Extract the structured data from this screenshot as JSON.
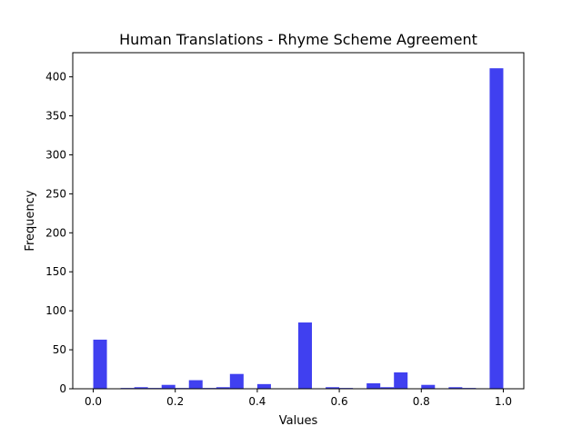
{
  "chart_data": {
    "type": "bar",
    "title": "Human Translations - Rhyme Scheme Agreement",
    "xlabel": "Values",
    "ylabel": "Frequency",
    "xlim": [
      -0.05,
      1.05
    ],
    "ylim": [
      0,
      431
    ],
    "x_ticks": [
      0.0,
      0.2,
      0.4,
      0.6,
      0.8,
      1.0
    ],
    "x_tick_labels": [
      "0.0",
      "0.2",
      "0.4",
      "0.6",
      "0.8",
      "1.0"
    ],
    "y_ticks": [
      0,
      50,
      100,
      150,
      200,
      250,
      300,
      350,
      400
    ],
    "y_tick_labels": [
      "0",
      "50",
      "100",
      "150",
      "200",
      "250",
      "300",
      "350",
      "400"
    ],
    "bin_width": 0.0333,
    "bins": [
      {
        "x": 0.0,
        "value": 63
      },
      {
        "x": 0.0333,
        "value": 0
      },
      {
        "x": 0.0667,
        "value": 1
      },
      {
        "x": 0.1,
        "value": 2
      },
      {
        "x": 0.1333,
        "value": 1
      },
      {
        "x": 0.1667,
        "value": 5
      },
      {
        "x": 0.2,
        "value": 1
      },
      {
        "x": 0.2333,
        "value": 11
      },
      {
        "x": 0.2667,
        "value": 1
      },
      {
        "x": 0.3,
        "value": 2
      },
      {
        "x": 0.3333,
        "value": 19
      },
      {
        "x": 0.3667,
        "value": 0
      },
      {
        "x": 0.4,
        "value": 6
      },
      {
        "x": 0.4333,
        "value": 0
      },
      {
        "x": 0.4667,
        "value": 0
      },
      {
        "x": 0.5,
        "value": 85
      },
      {
        "x": 0.5333,
        "value": 0
      },
      {
        "x": 0.5667,
        "value": 2
      },
      {
        "x": 0.6,
        "value": 1
      },
      {
        "x": 0.6333,
        "value": 0
      },
      {
        "x": 0.6667,
        "value": 7
      },
      {
        "x": 0.7,
        "value": 2
      },
      {
        "x": 0.7333,
        "value": 21
      },
      {
        "x": 0.7667,
        "value": 0
      },
      {
        "x": 0.8,
        "value": 5
      },
      {
        "x": 0.8333,
        "value": 0
      },
      {
        "x": 0.8667,
        "value": 2
      },
      {
        "x": 0.9,
        "value": 1
      },
      {
        "x": 0.9333,
        "value": 0
      },
      {
        "x": 0.9667,
        "value": 411
      }
    ],
    "bar_color": "#4040f0",
    "grid": false,
    "legend": "none"
  }
}
